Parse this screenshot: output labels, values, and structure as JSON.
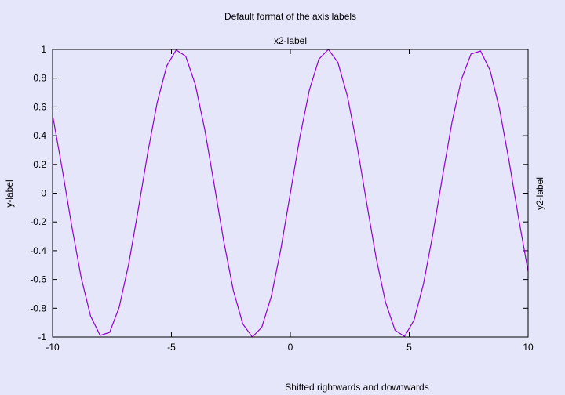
{
  "chart_data": {
    "type": "line",
    "title": "Default format of the axis labels",
    "xlabel": "Shifted rightwards and downwards",
    "x2label": "x2-label",
    "ylabel": "y-label",
    "y2label": "y2-label",
    "xlim": [
      -10,
      10
    ],
    "ylim": [
      -1,
      1
    ],
    "x_ticks": [
      -10,
      -5,
      0,
      5,
      10
    ],
    "x_tick_labels": [
      "-10",
      "-5",
      "0",
      "5",
      "10"
    ],
    "y_ticks": [
      -1,
      -0.8,
      -0.6,
      -0.4,
      -0.2,
      0,
      0.2,
      0.4,
      0.6,
      0.8,
      1
    ],
    "y_tick_labels": [
      "-1",
      "-0.8",
      "-0.6",
      "-0.4",
      "-0.2",
      "0",
      "0.2",
      "0.4",
      "0.6",
      "0.8",
      "1"
    ],
    "grid": false,
    "line_color": "#9400d3",
    "series": [
      {
        "x": [
          -10,
          -9.6,
          -9.2,
          -8.8,
          -8.4,
          -8,
          -7.6,
          -7.2,
          -6.8,
          -6.4,
          -6,
          -5.6,
          -5.2,
          -4.8,
          -4.4,
          -4,
          -3.6,
          -3.2,
          -2.8,
          -2.4,
          -2,
          -1.6,
          -1.2,
          -0.8,
          -0.4,
          0,
          0.4,
          0.8,
          1.2,
          1.6,
          2,
          2.4,
          2.8,
          3.2,
          3.6,
          4,
          4.4,
          4.8,
          5.2,
          5.6,
          6,
          6.4,
          6.8,
          7.2,
          7.6,
          8,
          8.4,
          8.8,
          9.2,
          9.6,
          10
        ],
        "y": [
          0.544,
          0.174,
          -0.223,
          -0.585,
          -0.855,
          -0.989,
          -0.968,
          -0.794,
          -0.494,
          -0.117,
          0.279,
          0.631,
          0.884,
          0.996,
          0.952,
          0.757,
          0.443,
          0.058,
          -0.335,
          -0.675,
          -0.909,
          -1.0,
          -0.932,
          -0.717,
          -0.389,
          0.0,
          0.389,
          0.717,
          0.932,
          1.0,
          0.909,
          0.675,
          0.335,
          -0.058,
          -0.443,
          -0.757,
          -0.952,
          -0.996,
          -0.884,
          -0.631,
          -0.279,
          0.117,
          0.494,
          0.794,
          0.968,
          0.989,
          0.855,
          0.585,
          0.223,
          -0.174,
          -0.544
        ]
      }
    ]
  }
}
